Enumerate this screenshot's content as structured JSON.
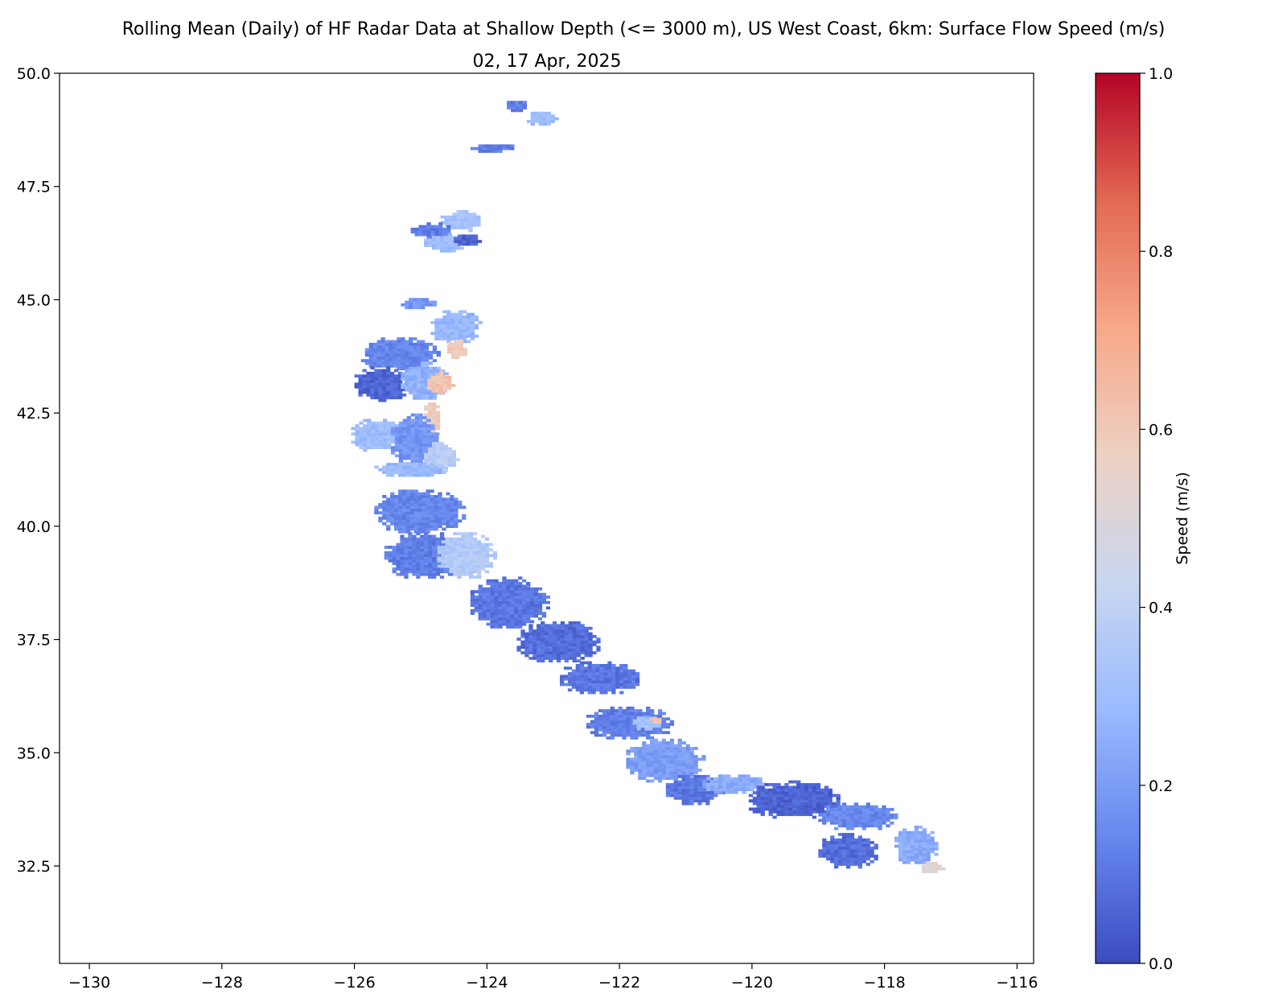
{
  "chart_data": {
    "type": "heatmap",
    "title": "Rolling Mean (Daily) of HF Radar Data at Shallow Depth (<= 3000 m), US West Coast, 6km: Surface Flow Speed (m/s)",
    "subtitle": "02, 17 Apr, 2025",
    "xlabel": "",
    "ylabel": "",
    "xlim": [
      -130.45,
      -115.75
    ],
    "ylim": [
      30.35,
      50.0
    ],
    "x_ticks": [
      {
        "value": -130,
        "label": "−130"
      },
      {
        "value": -128,
        "label": "−128"
      },
      {
        "value": -126,
        "label": "−126"
      },
      {
        "value": -124,
        "label": "−124"
      },
      {
        "value": -122,
        "label": "−122"
      },
      {
        "value": -120,
        "label": "−120"
      },
      {
        "value": -118,
        "label": "−118"
      },
      {
        "value": -116,
        "label": "−116"
      }
    ],
    "y_ticks": [
      {
        "value": 32.5,
        "label": "32.5"
      },
      {
        "value": 35.0,
        "label": "35.0"
      },
      {
        "value": 37.5,
        "label": "37.5"
      },
      {
        "value": 40.0,
        "label": "40.0"
      },
      {
        "value": 42.5,
        "label": "42.5"
      },
      {
        "value": 45.0,
        "label": "45.0"
      },
      {
        "value": 47.5,
        "label": "47.5"
      },
      {
        "value": 50.0,
        "label": "50.0"
      }
    ],
    "grid": false,
    "colormap": "coolwarm",
    "colorbar": {
      "label": "Speed (m/s)",
      "range": [
        0.0,
        1.0
      ],
      "ticks": [
        {
          "value": 0.0,
          "label": "0.0"
        },
        {
          "value": 0.2,
          "label": "0.2"
        },
        {
          "value": 0.4,
          "label": "0.4"
        },
        {
          "value": 0.6,
          "label": "0.6"
        },
        {
          "value": 0.8,
          "label": "0.8"
        },
        {
          "value": 1.0,
          "label": "1.0"
        }
      ],
      "colors": [
        "#3b4cc0",
        "#6788ee",
        "#9abbff",
        "#c9d7f0",
        "#edd1c2",
        "#f7a889",
        "#e26952",
        "#b40426"
      ]
    },
    "speed_fields": [
      {
        "lon": [
          -123.7,
          -123.4
        ],
        "lat": [
          49.15,
          49.4
        ],
        "speed": 0.12
      },
      {
        "lon": [
          -123.4,
          -122.95
        ],
        "lat": [
          48.85,
          49.15
        ],
        "speed": 0.3
      },
      {
        "lon": [
          -124.25,
          -123.6
        ],
        "lat": [
          48.25,
          48.45
        ],
        "speed": 0.12
      },
      {
        "lon": [
          -124.7,
          -124.1
        ],
        "lat": [
          46.5,
          46.95
        ],
        "speed": 0.32
      },
      {
        "lon": [
          -125.15,
          -124.55
        ],
        "lat": [
          46.35,
          46.7
        ],
        "speed": 0.12
      },
      {
        "lon": [
          -124.95,
          -124.35
        ],
        "lat": [
          46.05,
          46.45
        ],
        "speed": 0.3
      },
      {
        "lon": [
          -124.5,
          -124.1
        ],
        "lat": [
          46.2,
          46.45
        ],
        "speed": 0.06
      },
      {
        "lon": [
          -125.3,
          -124.75
        ],
        "lat": [
          44.8,
          45.05
        ],
        "speed": 0.18
      },
      {
        "lon": [
          -124.85,
          -124.1
        ],
        "lat": [
          44.05,
          44.75
        ],
        "speed": 0.28
      },
      {
        "lon": [
          -125.9,
          -124.75
        ],
        "lat": [
          43.45,
          44.15
        ],
        "speed": 0.14
      },
      {
        "lon": [
          -126.0,
          -125.2
        ],
        "lat": [
          42.75,
          43.5
        ],
        "speed": 0.06
      },
      {
        "lon": [
          -125.3,
          -124.6
        ],
        "lat": [
          42.8,
          43.6
        ],
        "speed": 0.26
      },
      {
        "lon": [
          -124.6,
          -124.3
        ],
        "lat": [
          43.7,
          44.1
        ],
        "speed": 0.6
      },
      {
        "lon": [
          -124.9,
          -124.5
        ],
        "lat": [
          42.9,
          43.4
        ],
        "speed": 0.62
      },
      {
        "lon": [
          -124.95,
          -124.7
        ],
        "lat": [
          41.95,
          42.75
        ],
        "speed": 0.58
      },
      {
        "lon": [
          -126.05,
          -125.3
        ],
        "lat": [
          41.65,
          42.35
        ],
        "speed": 0.3
      },
      {
        "lon": [
          -125.45,
          -124.75
        ],
        "lat": [
          41.35,
          42.45
        ],
        "speed": 0.18
      },
      {
        "lon": [
          -124.95,
          -124.45
        ],
        "lat": [
          41.2,
          41.85
        ],
        "speed": 0.38
      },
      {
        "lon": [
          -125.7,
          -124.6
        ],
        "lat": [
          41.1,
          41.4
        ],
        "speed": 0.28
      },
      {
        "lon": [
          -125.7,
          -124.35
        ],
        "lat": [
          39.85,
          40.8
        ],
        "speed": 0.14
      },
      {
        "lon": [
          -125.55,
          -124.3
        ],
        "lat": [
          38.85,
          39.85
        ],
        "speed": 0.12
      },
      {
        "lon": [
          -124.75,
          -123.9
        ],
        "lat": [
          38.85,
          39.85
        ],
        "speed": 0.36
      },
      {
        "lon": [
          -124.25,
          -123.1
        ],
        "lat": [
          37.75,
          38.85
        ],
        "speed": 0.1
      },
      {
        "lon": [
          -123.55,
          -122.3
        ],
        "lat": [
          37.0,
          37.9
        ],
        "speed": 0.08
      },
      {
        "lon": [
          -122.9,
          -121.7
        ],
        "lat": [
          36.3,
          37.0
        ],
        "speed": 0.1
      },
      {
        "lon": [
          -122.5,
          -121.2
        ],
        "lat": [
          35.3,
          36.0
        ],
        "speed": 0.12
      },
      {
        "lon": [
          -121.8,
          -121.35
        ],
        "lat": [
          35.5,
          35.8
        ],
        "speed": 0.32
      },
      {
        "lon": [
          -121.55,
          -121.35
        ],
        "lat": [
          35.65,
          35.8
        ],
        "speed": 0.6
      },
      {
        "lon": [
          -121.9,
          -120.75
        ],
        "lat": [
          34.35,
          35.3
        ],
        "speed": 0.2
      },
      {
        "lon": [
          -121.3,
          -120.45
        ],
        "lat": [
          33.85,
          34.5
        ],
        "speed": 0.1
      },
      {
        "lon": [
          -120.75,
          -119.8
        ],
        "lat": [
          34.1,
          34.5
        ],
        "speed": 0.24
      },
      {
        "lon": [
          -120.05,
          -118.7
        ],
        "lat": [
          33.55,
          34.35
        ],
        "speed": 0.06
      },
      {
        "lon": [
          -119.0,
          -117.8
        ],
        "lat": [
          33.3,
          33.9
        ],
        "speed": 0.14
      },
      {
        "lon": [
          -117.85,
          -117.2
        ],
        "lat": [
          32.55,
          33.35
        ],
        "speed": 0.24
      },
      {
        "lon": [
          -117.5,
          -117.1
        ],
        "lat": [
          32.35,
          32.6
        ],
        "speed": 0.5
      },
      {
        "lon": [
          -119.0,
          -118.1
        ],
        "lat": [
          32.45,
          33.2
        ],
        "speed": 0.08
      }
    ]
  }
}
